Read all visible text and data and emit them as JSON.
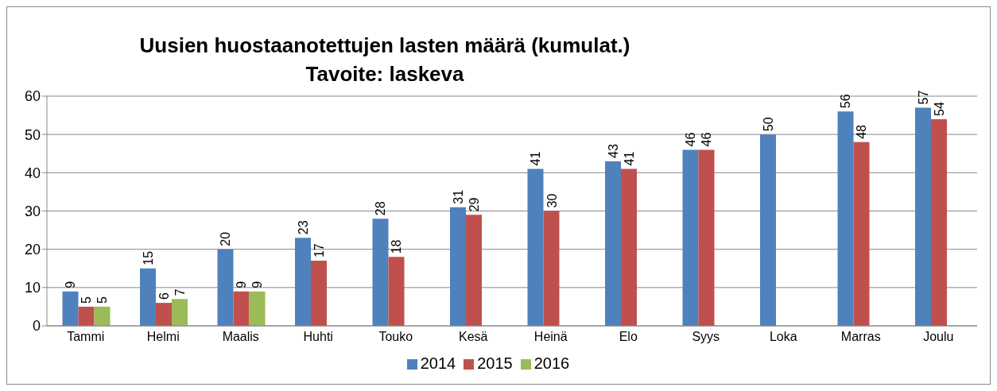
{
  "chart_data": {
    "type": "bar",
    "title": "Uusien huostaanotettujen lasten määrä (kumulat.)",
    "subtitle": "Tavoite: laskeva",
    "categories": [
      "Tammi",
      "Helmi",
      "Maalis",
      "Huhti",
      "Touko",
      "Kesä",
      "Heinä",
      "Elo",
      "Syys",
      "Loka",
      "Marras",
      "Joulu"
    ],
    "series": [
      {
        "name": "2014",
        "color": "#4f81bd",
        "values": [
          9,
          15,
          20,
          23,
          28,
          31,
          41,
          43,
          46,
          50,
          56,
          57
        ]
      },
      {
        "name": "2015",
        "color": "#c0504d",
        "values": [
          5,
          6,
          9,
          17,
          18,
          29,
          30,
          41,
          46,
          null,
          48,
          54
        ]
      },
      {
        "name": "2016",
        "color": "#9bbb59",
        "values": [
          5,
          7,
          9,
          null,
          null,
          null,
          null,
          null,
          null,
          null,
          null,
          null
        ]
      }
    ],
    "ylim": [
      0,
      60
    ],
    "yticks": [
      0,
      10,
      20,
      30,
      40,
      50,
      60
    ],
    "grid": "y",
    "legend": "bottom",
    "data_labels": true
  }
}
